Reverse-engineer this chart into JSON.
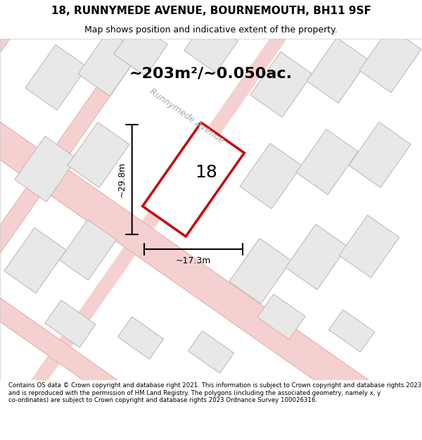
{
  "title_line1": "18, RUNNYMEDE AVENUE, BOURNEMOUTH, BH11 9SF",
  "title_line2": "Map shows position and indicative extent of the property.",
  "area_label": "~203m²/~0.050ac.",
  "number_label": "18",
  "dim_width": "~17.3m",
  "dim_height": "~29.8m",
  "street_label": "Runnymede Avenue",
  "footer_text": "Contains OS data © Crown copyright and database right 2021. This information is subject to Crown copyright and database rights 2023 and is reproduced with the permission of HM Land Registry. The polygons (including the associated geometry, namely x, y co-ordinates) are subject to Crown copyright and database rights 2023 Ordnance Survey 100026316.",
  "bg_color": "#f5f0f0",
  "map_bg": "#ffffff",
  "plot_color": "#cc0000",
  "building_fill": "#e8e8e8",
  "building_stroke": "#e0c8c8",
  "road_color": "#f5d0d0",
  "title_bg": "#ffffff",
  "footer_bg": "#ffffff"
}
